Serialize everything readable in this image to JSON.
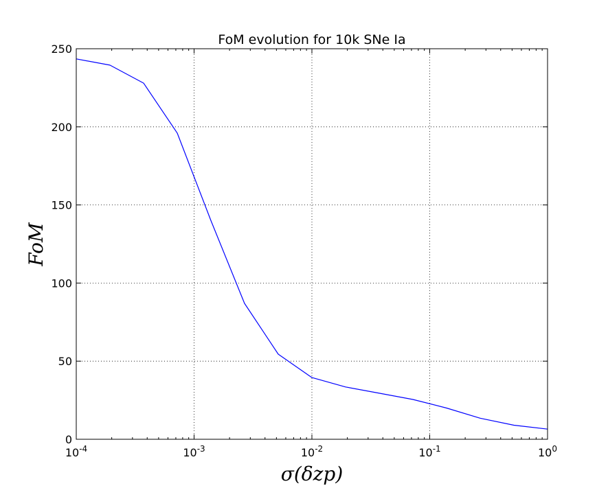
{
  "chart_data": {
    "type": "line",
    "title": "FoM evolution for 10k SNe Ia",
    "xlabel": "σ(δzp)",
    "ylabel": "FoM",
    "xscale": "log",
    "xlim": [
      0.0001,
      1
    ],
    "ylim": [
      0,
      250
    ],
    "grid": true,
    "x_ticks": [
      {
        "base": "10",
        "exp": "-4"
      },
      {
        "base": "10",
        "exp": "-3"
      },
      {
        "base": "10",
        "exp": "-2"
      },
      {
        "base": "10",
        "exp": "-1"
      },
      {
        "base": "10",
        "exp": "0"
      }
    ],
    "y_ticks": [
      "0",
      "50",
      "100",
      "150",
      "200",
      "250"
    ],
    "series": [
      {
        "color": "#0000ff",
        "x": [
          0.0001,
          0.000193,
          0.000373,
          0.00072,
          0.00139,
          0.00268,
          0.00518,
          0.01,
          0.0193,
          0.0373,
          0.072,
          0.139,
          0.268,
          0.518,
          1.0
        ],
        "y": [
          243.5,
          239.5,
          228,
          196,
          140,
          87,
          54.5,
          39.5,
          33.5,
          29.5,
          25.5,
          20,
          13.5,
          9,
          6.5
        ]
      }
    ]
  }
}
